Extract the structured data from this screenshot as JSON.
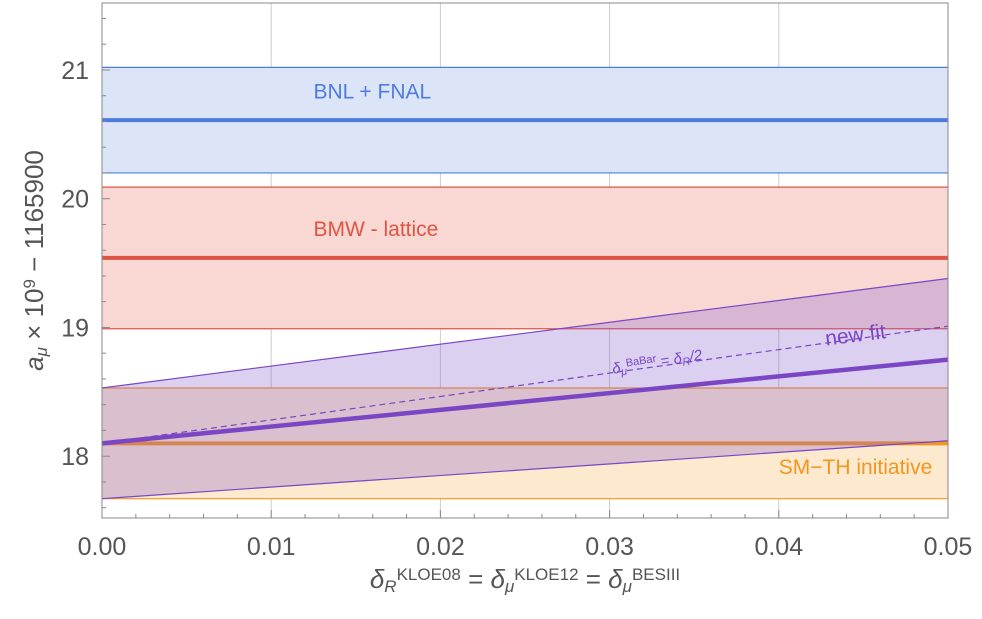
{
  "chart_data": {
    "type": "line",
    "title": "",
    "xlabel": {
      "parts": [
        {
          "text": "δ",
          "style": "italic"
        },
        {
          "text": "R",
          "style": "sub"
        },
        {
          "text": "KLOE08",
          "style": "sup"
        },
        {
          "text": " = ",
          "style": "normal"
        },
        {
          "text": "δ",
          "style": "italic"
        },
        {
          "text": "μ",
          "style": "sub"
        },
        {
          "text": "KLOE12",
          "style": "sup"
        },
        {
          "text": " = ",
          "style": "normal"
        },
        {
          "text": "δ",
          "style": "italic"
        },
        {
          "text": "μ",
          "style": "sub"
        },
        {
          "text": "BESIII",
          "style": "sup"
        }
      ]
    },
    "ylabel": {
      "parts": [
        {
          "text": "a",
          "style": "italic"
        },
        {
          "text": "μ",
          "style": "sub"
        },
        {
          "text": " × 10",
          "style": "normal"
        },
        {
          "text": "9",
          "style": "sup"
        },
        {
          "text": " − 1165900",
          "style": "normal"
        }
      ]
    },
    "xlim": [
      0,
      0.05
    ],
    "ylim": [
      17.52,
      21.52
    ],
    "x_ticks": [
      0.0,
      0.01,
      0.02,
      0.03,
      0.04,
      0.05
    ],
    "x_tick_labels": [
      "0.00",
      "0.01",
      "0.02",
      "0.03",
      "0.04",
      "0.05"
    ],
    "y_ticks": [
      18,
      19,
      20,
      21
    ],
    "y_tick_labels": [
      "18",
      "19",
      "20",
      "21"
    ],
    "grid": "vertical",
    "bands": [
      {
        "name": "BNL + FNAL",
        "center": 20.61,
        "lower": 20.2,
        "upper": 21.02,
        "color": "#4f7be0",
        "fill": "#dce5f7"
      },
      {
        "name": "BMW - lattice",
        "center": 19.54,
        "lower": 18.99,
        "upper": 20.09,
        "color": "#e05443",
        "fill": "#f9d8d4"
      },
      {
        "name": "SM-TH initiative",
        "center": 18.1,
        "lower": 17.67,
        "upper": 18.53,
        "color": "#f2961f",
        "fill": "#fde9cd"
      }
    ],
    "series": [
      {
        "name": "new fit",
        "x": [
          0.0,
          0.05
        ],
        "center": [
          18.1,
          18.75
        ],
        "lower": [
          17.67,
          18.12
        ],
        "upper": [
          18.53,
          19.38
        ],
        "color": "#7a46c4",
        "fill": "rgba(140, 100, 210, 0.30)"
      }
    ],
    "dashed_line": {
      "x": [
        0.0,
        0.05
      ],
      "y": [
        18.1,
        19.01
      ],
      "color": "#7a46c4",
      "label": [
        {
          "text": "δ",
          "style": "italic"
        },
        {
          "text": "μ",
          "style": "sub"
        },
        {
          "text": "BaBar",
          "style": "sup"
        },
        {
          "text": " = ",
          "style": "normal"
        },
        {
          "text": "δ",
          "style": "italic"
        },
        {
          "text": "R",
          "style": "sub"
        },
        {
          "text": "/2",
          "style": "italic"
        }
      ]
    },
    "annotations": [
      {
        "text": "BNL + FNAL",
        "x": 0.0125,
        "y": 20.78,
        "color": "#4f7be0"
      },
      {
        "text": "BMW - lattice",
        "x": 0.0125,
        "y": 19.71,
        "color": "#e05443"
      },
      {
        "text": "SM−TH initiative",
        "x": 0.04,
        "y": 17.86,
        "color": "#f2961f"
      },
      {
        "text": "new fit",
        "x": 0.0428,
        "y": 18.86,
        "color": "#7a46c4"
      }
    ]
  }
}
